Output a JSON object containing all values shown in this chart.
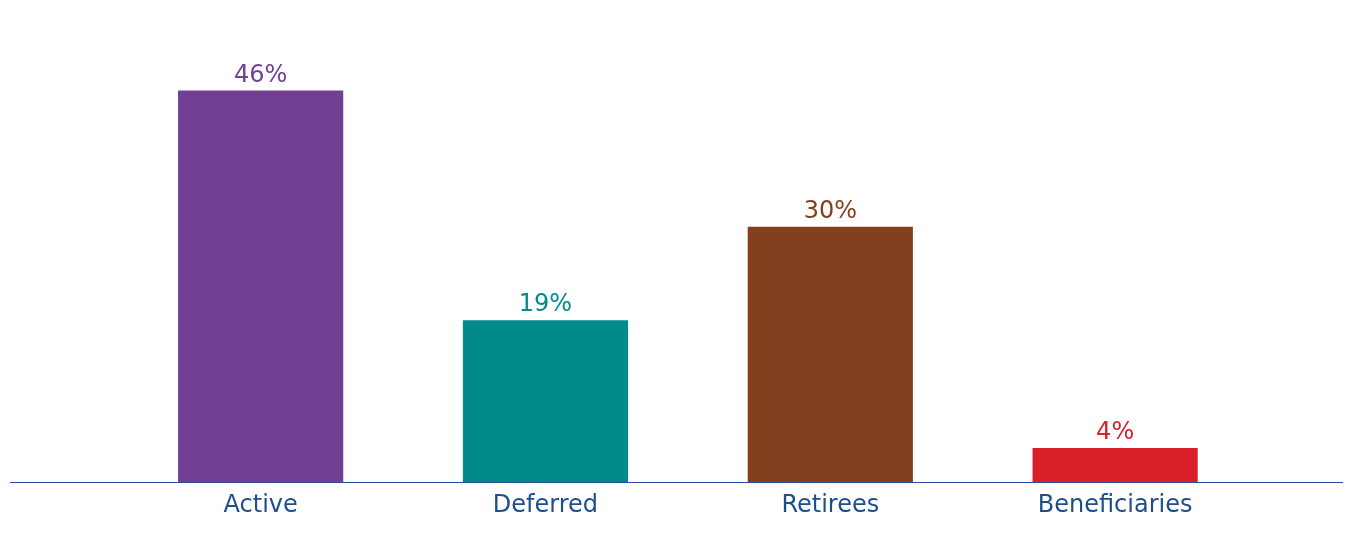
{
  "chart_data": {
    "type": "bar",
    "categories": [
      "Active",
      "Deferred",
      "Retirees",
      "Beneficiaries"
    ],
    "values": [
      46,
      19,
      30,
      4
    ],
    "colors": [
      "#724093",
      "#008b8b",
      "#843f1f",
      "#d9202a"
    ],
    "value_labels": [
      "46%",
      "19%",
      "30%",
      "4%"
    ]
  }
}
